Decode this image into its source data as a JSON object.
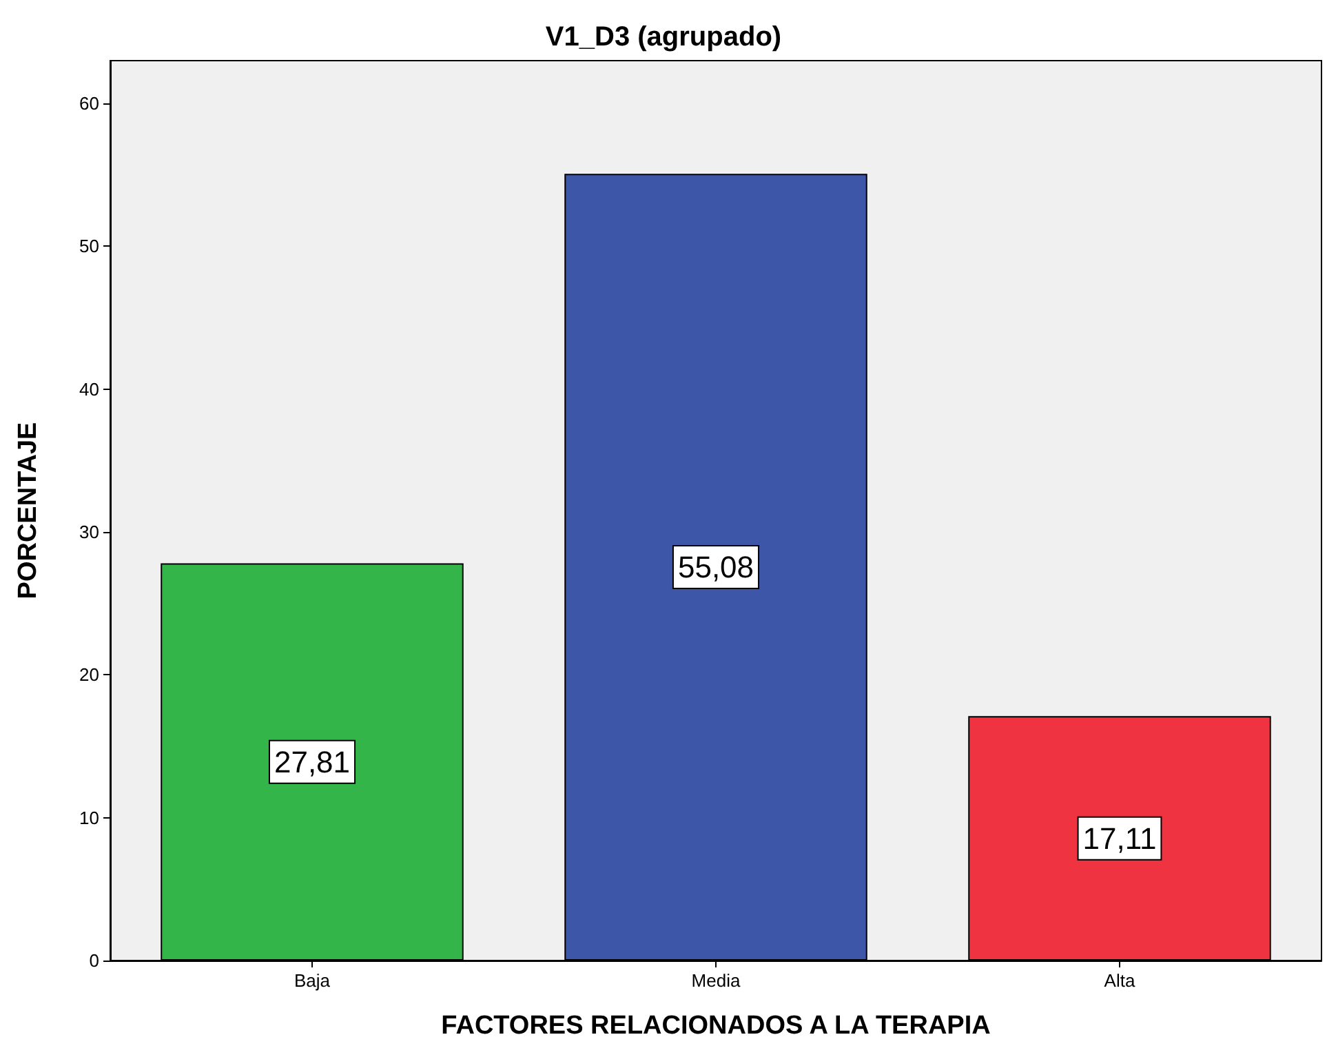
{
  "chart_data": {
    "type": "bar",
    "title": "V1_D3 (agrupado)",
    "xlabel": "FACTORES RELACIONADOS A LA TERAPIA",
    "ylabel": "PORCENTAJE",
    "categories": [
      "Baja",
      "Media",
      "Alta"
    ],
    "values": [
      27.81,
      55.08,
      17.11
    ],
    "colors": [
      "#33b54a",
      "#3d56a8",
      "#ef3340"
    ],
    "value_labels": [
      "27,81",
      "55,08",
      "17,11"
    ],
    "ylim": [
      0,
      63
    ],
    "yticks": [
      0,
      10,
      20,
      30,
      40,
      50,
      60
    ],
    "grid": false
  }
}
